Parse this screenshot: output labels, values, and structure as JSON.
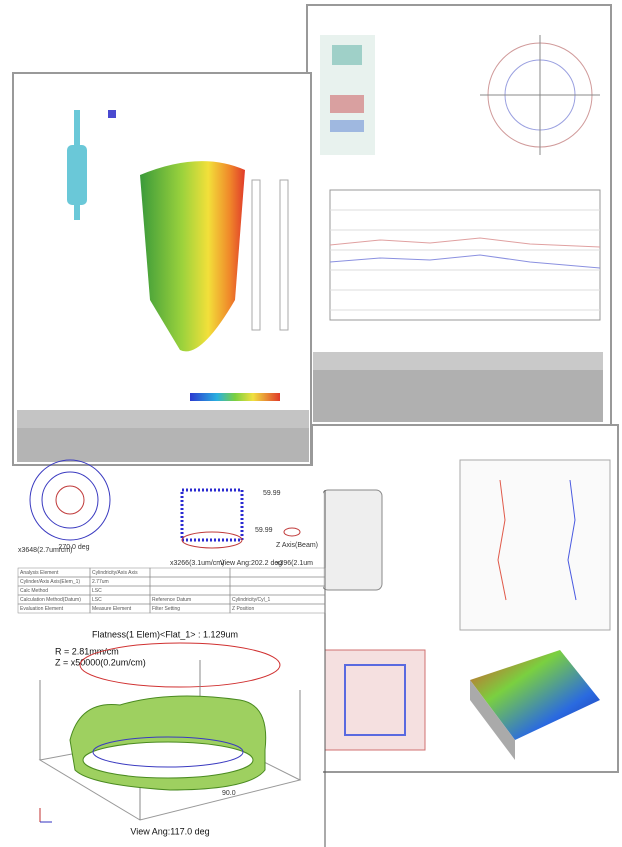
{
  "lower_left": {
    "angle_label": "270.0 deg",
    "scale_left": "x3648(2.7um/cm)",
    "scale_mid": "x3266(3.1um/cm)",
    "view_angle_top": "View Ang:202.2 deg",
    "scale_right": "x396(2.1um",
    "axis_label": "Z Axis(Beam)",
    "value_a": "59.99",
    "value_b": "59.99",
    "table": {
      "rows": [
        [
          "Analysis Element",
          "Cylindricity/Axis Axis",
          "",
          ""
        ],
        [
          "Cylinder/Axis Axis(Elem_1)",
          "2.77um",
          "",
          ""
        ],
        [
          "Calc Method",
          "LSC",
          "",
          ""
        ],
        [
          "Calculation Method(Datum)",
          "LSC",
          "Reference Datum",
          "Cylindricity/Cyl_1"
        ],
        [
          "Evaluation Element",
          "Measure Element",
          "Filter Setting",
          "Z Position"
        ]
      ]
    },
    "plot_title": "Flatness(1 Elem)<Flat_1> : 1.129um",
    "r_scale": "R = 2.81mm/cm",
    "z_scale": "Z = x50000(0.2um/cm)",
    "tick_label": "90.0",
    "view_angle_bottom": "View Ang:117.0 deg"
  }
}
